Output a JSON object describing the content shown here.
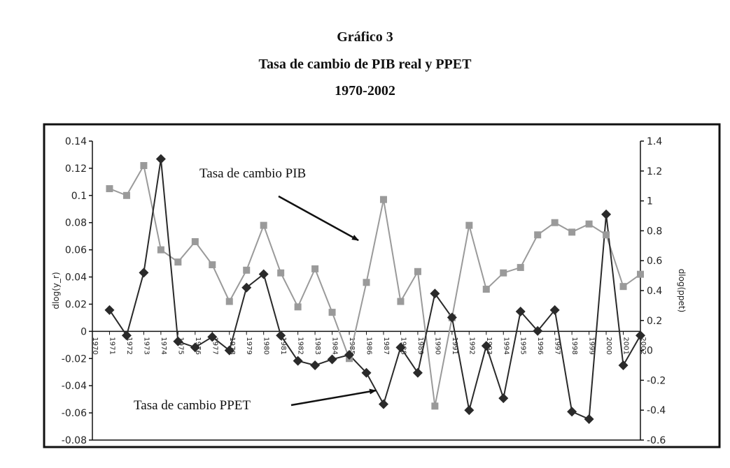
{
  "titles": {
    "line1": "Gráfico 3",
    "line2": "Tasa de cambio de PIB real y PPET",
    "line3": "1970-2002"
  },
  "chart_data": {
    "type": "line",
    "categories": [
      "1970",
      "1971",
      "1972",
      "1973",
      "1974",
      "1975",
      "1976",
      "1977",
      "1978",
      "1979",
      "1980",
      "1981",
      "1982",
      "1983",
      "1984",
      "1985",
      "1986",
      "1987",
      "1988",
      "1989",
      "1990",
      "1991",
      "1992",
      "1993",
      "1994",
      "1995",
      "1996",
      "1997",
      "1998",
      "1999",
      "2000",
      "2001",
      "2002"
    ],
    "ylabel": "dlog(y_r)",
    "y2label": "dlog(ppet)",
    "ylim": [
      -0.08,
      0.14
    ],
    "y2lim": [
      -0.6,
      1.4
    ],
    "yticks": [
      "0.14",
      "0.12",
      "0.1",
      "0.08",
      "0.06",
      "0.04",
      "0.02",
      "0",
      "-0.02",
      "-0.04",
      "-0.06",
      "-0.08"
    ],
    "y2ticks": [
      "1.4",
      "1.2",
      "1",
      "0.8",
      "0.6",
      "0.4",
      "0.2",
      "0",
      "-0.2",
      "-0.4",
      "-0.6"
    ],
    "series": [
      {
        "axis": "left",
        "marker": "square",
        "color": "#9a9a9a",
        "x": [
          "1971",
          "1972",
          "1973",
          "1974",
          "1975",
          "1976",
          "1977",
          "1978",
          "1979",
          "1980",
          "1981",
          "1982",
          "1983",
          "1984",
          "1985",
          "1986",
          "1987",
          "1988",
          "1989",
          "1990",
          "1991",
          "1992",
          "1993",
          "1994",
          "1995",
          "1996",
          "1997",
          "1998",
          "1999",
          "2000",
          "2001",
          "2002"
        ],
        "values": [
          0.105,
          0.1,
          0.122,
          0.06,
          0.051,
          0.066,
          0.049,
          0.022,
          0.045,
          0.078,
          0.043,
          0.018,
          0.046,
          0.014,
          -0.02,
          0.036,
          0.097,
          0.022,
          0.044,
          -0.055,
          0.01,
          0.078,
          0.031,
          0.043,
          0.047,
          0.071,
          0.08,
          0.073,
          0.079,
          0.071,
          0.033,
          0.042
        ]
      },
      {
        "axis": "right",
        "marker": "diamond",
        "color": "#2a2a2a",
        "x": [
          "1971",
          "1972",
          "1973",
          "1974",
          "1975",
          "1976",
          "1977",
          "1978",
          "1979",
          "1980",
          "1981",
          "1982",
          "1983",
          "1984",
          "1985",
          "1986",
          "1987",
          "1988",
          "1989",
          "1990",
          "1991",
          "1992",
          "1993",
          "1994",
          "1995",
          "1996",
          "1997",
          "1998",
          "1999",
          "2000",
          "2001",
          "2002"
        ],
        "values": [
          0.27,
          0.1,
          0.52,
          1.28,
          0.06,
          0.02,
          0.09,
          0.0,
          0.42,
          0.51,
          0.1,
          -0.07,
          -0.1,
          -0.06,
          -0.03,
          -0.15,
          -0.36,
          0.02,
          -0.15,
          0.38,
          0.22,
          -0.4,
          0.03,
          -0.32,
          0.26,
          0.13,
          0.27,
          -0.41,
          -0.46,
          0.91,
          -0.1,
          0.1
        ]
      }
    ],
    "annotations": [
      {
        "text": "Tasa de cambio PIB"
      },
      {
        "text": "Tasa de cambio PPET"
      }
    ]
  }
}
